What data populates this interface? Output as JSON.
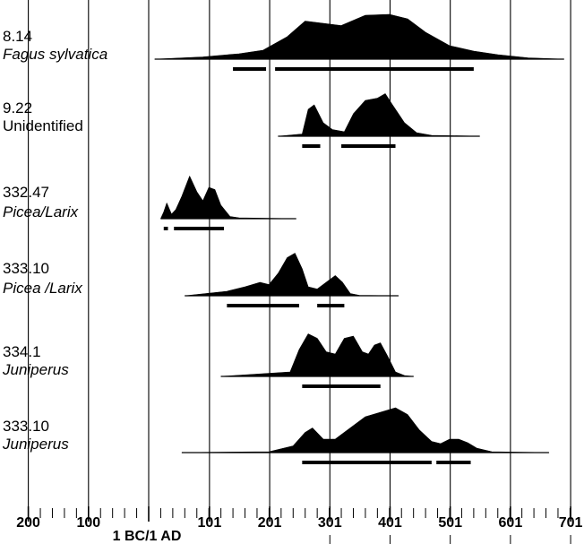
{
  "chart_data": {
    "type": "area",
    "title": "",
    "xlabel": "",
    "ylabel": "",
    "xlim": [
      -200,
      710
    ],
    "x_ticks": [
      {
        "value": -200,
        "label": "200"
      },
      {
        "value": -100,
        "label": "100"
      },
      {
        "value": 0,
        "label": "1 BC/1 AD"
      },
      {
        "value": 101,
        "label": "101"
      },
      {
        "value": 201,
        "label": "201"
      },
      {
        "value": 301,
        "label": "301"
      },
      {
        "value": 401,
        "label": "401"
      },
      {
        "value": 501,
        "label": "501"
      },
      {
        "value": 601,
        "label": "601"
      },
      {
        "value": 701,
        "label": "701"
      }
    ],
    "grid": true,
    "samples": [
      {
        "id": "8.14",
        "taxon": "Fagus sylvatica",
        "italic": true,
        "range": [
          10,
          690
        ],
        "distribution": [
          [
            10,
            0
          ],
          [
            90,
            0.05
          ],
          [
            150,
            0.12
          ],
          [
            190,
            0.2
          ],
          [
            230,
            0.5
          ],
          [
            260,
            0.85
          ],
          [
            290,
            0.8
          ],
          [
            320,
            0.75
          ],
          [
            360,
            0.98
          ],
          [
            400,
            1.0
          ],
          [
            430,
            0.9
          ],
          [
            460,
            0.6
          ],
          [
            500,
            0.3
          ],
          [
            540,
            0.18
          ],
          [
            580,
            0.1
          ],
          [
            630,
            0.03
          ],
          [
            690,
            0
          ]
        ],
        "intervals": [
          [
            140,
            195
          ],
          [
            210,
            540
          ]
        ]
      },
      {
        "id": "9.22",
        "taxon": "Unidentified",
        "italic": false,
        "range": [
          215,
          550
        ],
        "distribution": [
          [
            215,
            0
          ],
          [
            255,
            0.05
          ],
          [
            265,
            0.6
          ],
          [
            275,
            0.7
          ],
          [
            290,
            0.3
          ],
          [
            305,
            0.15
          ],
          [
            325,
            0.1
          ],
          [
            340,
            0.5
          ],
          [
            360,
            0.8
          ],
          [
            380,
            0.85
          ],
          [
            393,
            0.95
          ],
          [
            405,
            0.7
          ],
          [
            425,
            0.3
          ],
          [
            445,
            0.08
          ],
          [
            470,
            0.02
          ],
          [
            550,
            0
          ]
        ],
        "intervals": [
          [
            255,
            285
          ],
          [
            320,
            410
          ]
        ]
      },
      {
        "id": "332.47",
        "taxon": "Picea/Larix",
        "italic": true,
        "range": [
          20,
          245
        ],
        "distribution": [
          [
            20,
            0
          ],
          [
            25,
            0.15
          ],
          [
            30,
            0.35
          ],
          [
            38,
            0.1
          ],
          [
            45,
            0.2
          ],
          [
            55,
            0.5
          ],
          [
            68,
            0.95
          ],
          [
            80,
            0.6
          ],
          [
            90,
            0.4
          ],
          [
            100,
            0.7
          ],
          [
            110,
            0.65
          ],
          [
            120,
            0.3
          ],
          [
            135,
            0.05
          ],
          [
            150,
            0.02
          ],
          [
            245,
            0
          ]
        ],
        "intervals": [
          [
            25,
            32
          ],
          [
            42,
            125
          ]
        ]
      },
      {
        "id": "333.10",
        "taxon": "Picea /Larix",
        "italic": true,
        "range": [
          60,
          415
        ],
        "distribution": [
          [
            60,
            0
          ],
          [
            130,
            0.1
          ],
          [
            160,
            0.2
          ],
          [
            185,
            0.3
          ],
          [
            200,
            0.25
          ],
          [
            215,
            0.5
          ],
          [
            230,
            0.85
          ],
          [
            243,
            0.95
          ],
          [
            255,
            0.6
          ],
          [
            265,
            0.2
          ],
          [
            280,
            0.15
          ],
          [
            295,
            0.3
          ],
          [
            310,
            0.45
          ],
          [
            322,
            0.3
          ],
          [
            335,
            0.05
          ],
          [
            350,
            0.01
          ],
          [
            415,
            0
          ]
        ],
        "intervals": [
          [
            130,
            250
          ],
          [
            280,
            325
          ]
        ]
      },
      {
        "id": "334.1",
        "taxon": "Juniperus",
        "italic": true,
        "range": [
          120,
          440
        ],
        "distribution": [
          [
            120,
            0
          ],
          [
            235,
            0.1
          ],
          [
            250,
            0.6
          ],
          [
            265,
            0.95
          ],
          [
            280,
            0.85
          ],
          [
            295,
            0.55
          ],
          [
            310,
            0.5
          ],
          [
            325,
            0.85
          ],
          [
            340,
            0.9
          ],
          [
            355,
            0.55
          ],
          [
            365,
            0.5
          ],
          [
            375,
            0.7
          ],
          [
            385,
            0.75
          ],
          [
            397,
            0.45
          ],
          [
            410,
            0.1
          ],
          [
            425,
            0.02
          ],
          [
            440,
            0
          ]
        ],
        "intervals": [
          [
            255,
            385
          ]
        ]
      },
      {
        "id": "333.10",
        "taxon": "Juniperus",
        "italic": true,
        "range": [
          55,
          665
        ],
        "distribution": [
          [
            55,
            0
          ],
          [
            200,
            0.02
          ],
          [
            240,
            0.15
          ],
          [
            260,
            0.45
          ],
          [
            272,
            0.55
          ],
          [
            290,
            0.3
          ],
          [
            310,
            0.3
          ],
          [
            335,
            0.55
          ],
          [
            360,
            0.8
          ],
          [
            385,
            0.9
          ],
          [
            410,
            1.0
          ],
          [
            430,
            0.85
          ],
          [
            450,
            0.5
          ],
          [
            470,
            0.25
          ],
          [
            485,
            0.2
          ],
          [
            500,
            0.3
          ],
          [
            515,
            0.3
          ],
          [
            530,
            0.22
          ],
          [
            545,
            0.1
          ],
          [
            570,
            0.02
          ],
          [
            665,
            0
          ]
        ],
        "intervals": [
          [
            255,
            470
          ],
          [
            478,
            535
          ]
        ]
      }
    ]
  }
}
